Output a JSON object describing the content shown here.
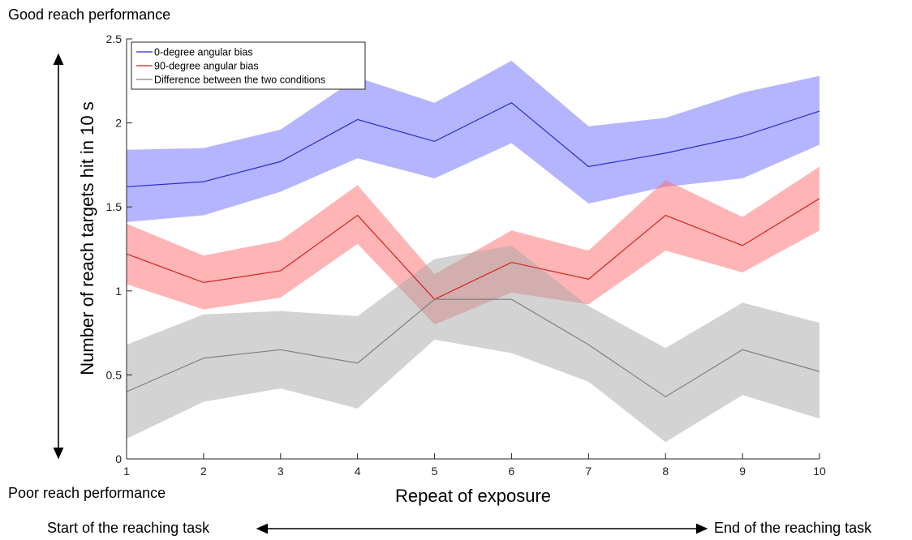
{
  "annotations": {
    "top_left": "Good reach performance",
    "bottom_left": "Poor reach performance",
    "bottom_start": "Start of the reaching task",
    "bottom_end": "End of the reaching task"
  },
  "chart_data": {
    "type": "line",
    "xlabel": "Repeat of exposure",
    "ylabel": "Number of reach targets hit in 10 s",
    "x": [
      1,
      2,
      3,
      4,
      5,
      6,
      7,
      8,
      9,
      10
    ],
    "xlim": [
      1,
      10
    ],
    "ylim": [
      0,
      2.5
    ],
    "xticks": [
      "1",
      "2",
      "3",
      "4",
      "5",
      "6",
      "7",
      "8",
      "9",
      "10"
    ],
    "yticks": [
      "0",
      "0.5",
      "1",
      "1.5",
      "2",
      "2.5"
    ],
    "grid": false,
    "legend_position": "top-left",
    "series": [
      {
        "name": "0-degree angular bias",
        "color": "#2a2ad4",
        "band_color": "#6b6bff",
        "values": [
          1.62,
          1.65,
          1.77,
          2.02,
          1.89,
          2.12,
          1.74,
          1.82,
          1.92,
          2.07
        ],
        "upper": [
          1.84,
          1.85,
          1.96,
          2.27,
          2.12,
          2.37,
          1.98,
          2.03,
          2.18,
          2.28
        ],
        "lower": [
          1.41,
          1.45,
          1.59,
          1.79,
          1.67,
          1.88,
          1.52,
          1.62,
          1.67,
          1.87
        ]
      },
      {
        "name": "90-degree angular bias",
        "color": "#d42020",
        "band_color": "#ff6b6b",
        "values": [
          1.22,
          1.05,
          1.12,
          1.45,
          0.95,
          1.17,
          1.07,
          1.45,
          1.27,
          1.55
        ],
        "upper": [
          1.4,
          1.21,
          1.3,
          1.63,
          1.1,
          1.36,
          1.24,
          1.66,
          1.44,
          1.74
        ],
        "lower": [
          1.04,
          0.89,
          0.96,
          1.28,
          0.8,
          0.99,
          0.92,
          1.24,
          1.11,
          1.36
        ]
      },
      {
        "name": "Difference between the two conditions",
        "color": "#808080",
        "band_color": "#a8a8a8",
        "values": [
          0.4,
          0.6,
          0.65,
          0.57,
          0.95,
          0.95,
          0.68,
          0.37,
          0.65,
          0.52
        ],
        "upper": [
          0.68,
          0.86,
          0.88,
          0.85,
          1.19,
          1.27,
          0.91,
          0.66,
          0.93,
          0.81
        ],
        "lower": [
          0.12,
          0.34,
          0.42,
          0.3,
          0.71,
          0.63,
          0.46,
          0.1,
          0.38,
          0.24
        ]
      }
    ]
  }
}
